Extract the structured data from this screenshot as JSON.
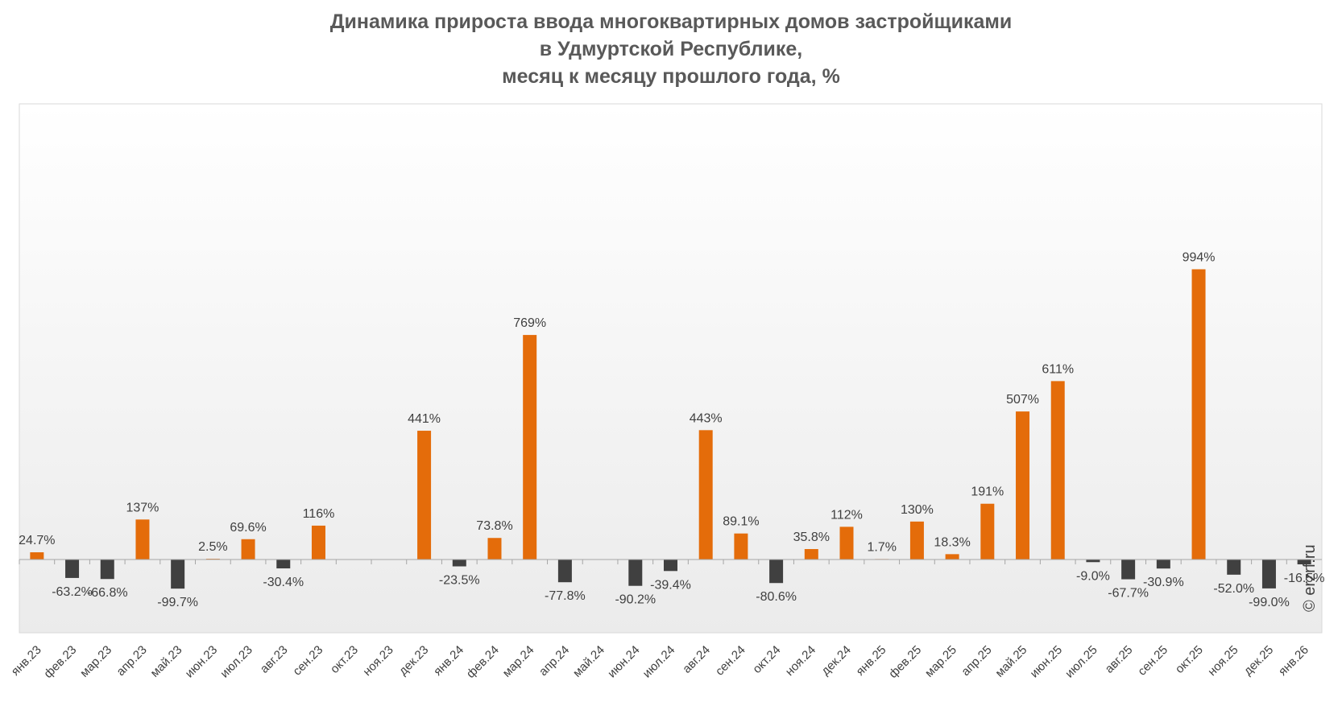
{
  "chart_data": {
    "type": "bar",
    "title_lines": [
      "Динамика прироста ввода многоквартирных домов застройщиками",
      "в Удмуртской Республике,",
      "месяц к месяцу прошлого года, %"
    ],
    "categories": [
      "янв.23",
      "фев.23",
      "мар.23",
      "апр.23",
      "май.23",
      "июн.23",
      "июл.23",
      "авг.23",
      "сен.23",
      "окт.23",
      "ноя.23",
      "дек.23",
      "янв.24",
      "фев.24",
      "мар.24",
      "апр.24",
      "май.24",
      "июн.24",
      "июл.24",
      "авг.24",
      "сен.24",
      "окт.24",
      "ноя.24",
      "дек.24",
      "янв.25",
      "фев.25",
      "мар.25",
      "апр.25",
      "май.25",
      "июн.25",
      "июл.25",
      "авг.25",
      "сен.25",
      "окт.25",
      "ноя.25",
      "дек.25",
      "янв.26"
    ],
    "values": [
      24.7,
      -63.2,
      -66.8,
      137,
      -99.7,
      2.5,
      69.6,
      -30.4,
      116,
      null,
      null,
      441,
      -23.5,
      73.8,
      769,
      -77.8,
      null,
      -90.2,
      -39.4,
      443,
      89.1,
      -80.6,
      35.8,
      112,
      1.7,
      130,
      18.3,
      191,
      507,
      611,
      -9.0,
      -67.7,
      -30.9,
      994,
      -52.0,
      -99.0,
      -16.5
    ],
    "labels": [
      "24.7%",
      "-63.2%",
      "-66.8%",
      "137%",
      "-99.7%",
      "2.5%",
      "69.6%",
      "-30.4%",
      "116%",
      "",
      "",
      "441%",
      "-23.5%",
      "73.8%",
      "769%",
      "-77.8%",
      "",
      "-90.2%",
      "-39.4%",
      "443%",
      "89.1%",
      "-80.6%",
      "35.8%",
      "112%",
      "1.7%",
      "130%",
      "18.3%",
      "191%",
      "507%",
      "611%",
      "-9.0%",
      "-67.7%",
      "-30.9%",
      "994%",
      "-52.0%",
      "-99.0%",
      "-16.5%"
    ],
    "ylim": [
      -200,
      1300
    ],
    "grid": false,
    "colors": {
      "positive": "#e46c0a",
      "negative": "#404040",
      "axis": "#a6a6a6",
      "text": "#404040",
      "title": "#595959"
    }
  },
  "source": "© erzrf.ru"
}
